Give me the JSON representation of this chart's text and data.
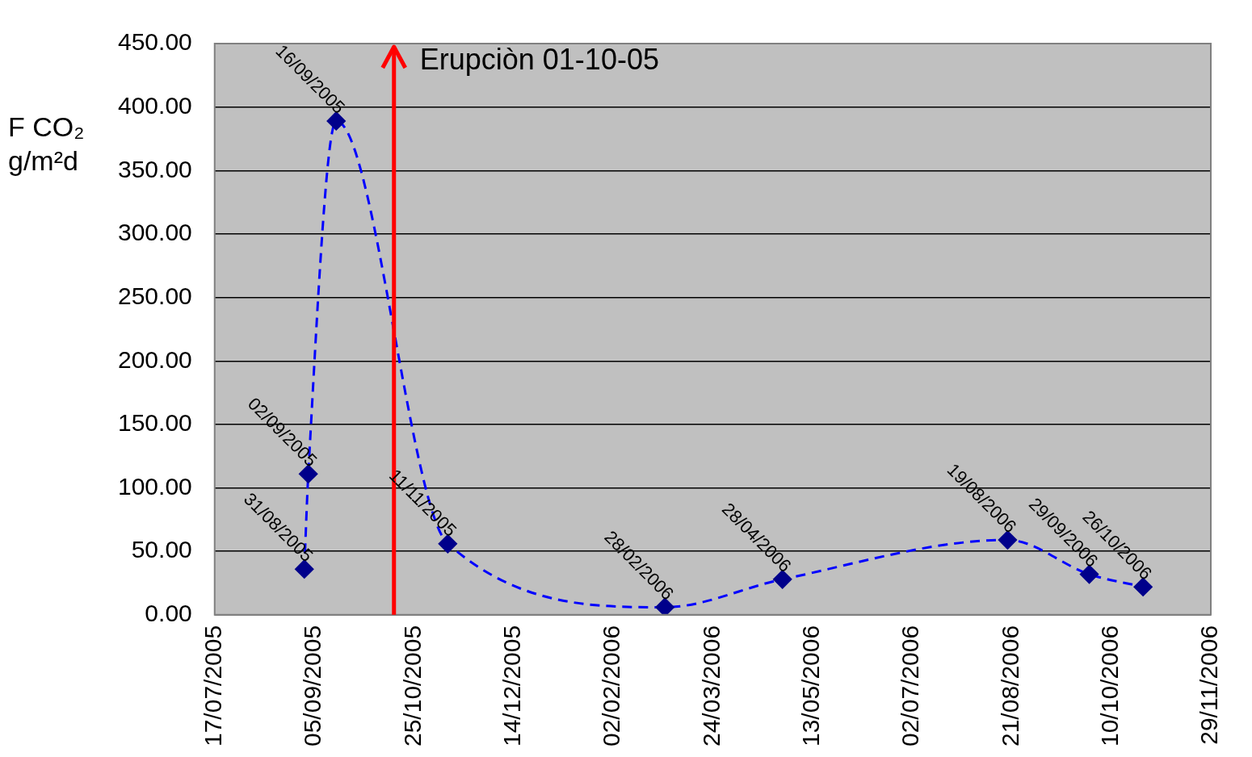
{
  "chart_data": {
    "type": "line",
    "ylabel": "F CO₂ g/m²d",
    "x": [
      "2005-08-31",
      "2005-09-02",
      "2005-09-16",
      "2005-11-11",
      "2006-02-28",
      "2006-04-28",
      "2006-08-19",
      "2006-09-29",
      "2006-10-26"
    ],
    "series": [
      {
        "color": "#00008b",
        "values": [
          36,
          111,
          389,
          56,
          6,
          28,
          59,
          32,
          22
        ]
      }
    ],
    "line_style": "dashed",
    "marker": "diamond",
    "grid": "y",
    "legend": false,
    "xlim": [
      "2005-07-17",
      "2006-11-29"
    ],
    "xticks": [
      {
        "value": "2005-07-17",
        "label": "17/07/2005"
      },
      {
        "value": "2005-09-05",
        "label": "05/09/2005"
      },
      {
        "value": "2005-10-25",
        "label": "25/10/2005"
      },
      {
        "value": "2005-12-14",
        "label": "14/12/2005"
      },
      {
        "value": "2006-02-02",
        "label": "02/02/2006"
      },
      {
        "value": "2006-03-24",
        "label": "24/03/2006"
      },
      {
        "value": "2006-05-13",
        "label": "13/05/2006"
      },
      {
        "value": "2006-07-02",
        "label": "02/07/2006"
      },
      {
        "value": "2006-08-21",
        "label": "21/08/2006"
      },
      {
        "value": "2006-10-10",
        "label": "10/10/2006"
      },
      {
        "value": "2006-11-29",
        "label": "29/11/2006"
      }
    ],
    "ylim": [
      0,
      450
    ],
    "yticks": [
      {
        "value": 0,
        "label": "0.00"
      },
      {
        "value": 50,
        "label": "50.00"
      },
      {
        "value": 100,
        "label": "100.00"
      },
      {
        "value": 150,
        "label": "150.00"
      },
      {
        "value": 200,
        "label": "200.00"
      },
      {
        "value": 250,
        "label": "250.00"
      },
      {
        "value": 300,
        "label": "300.00"
      },
      {
        "value": 350,
        "label": "350.00"
      },
      {
        "value": 400,
        "label": "400.00"
      },
      {
        "value": 450,
        "label": "450.00"
      }
    ],
    "ref_lines": [
      {
        "axis": "x",
        "value": "2005-10-15",
        "label": "Erupciòn 01-10-05",
        "color": "#ff0000"
      }
    ],
    "annotations": [
      {
        "text": "31/08/2005",
        "x": "2005-08-31",
        "y": 36
      },
      {
        "text": "02/09/2005",
        "x": "2005-09-02",
        "y": 111
      },
      {
        "text": "16/09/2005",
        "x": "2005-09-16",
        "y": 389
      },
      {
        "text": "11/11/2005",
        "x": "2005-11-11",
        "y": 56
      },
      {
        "text": "28/02/2006",
        "x": "2006-02-28",
        "y": 6
      },
      {
        "text": "28/04/2006",
        "x": "2006-04-28",
        "y": 28
      },
      {
        "text": "19/08/2006",
        "x": "2006-08-19",
        "y": 59
      },
      {
        "text": "29/09/2006",
        "x": "2006-09-29",
        "y": 32
      },
      {
        "text": "26/10/2006",
        "x": "2006-10-26",
        "y": 22
      }
    ]
  }
}
